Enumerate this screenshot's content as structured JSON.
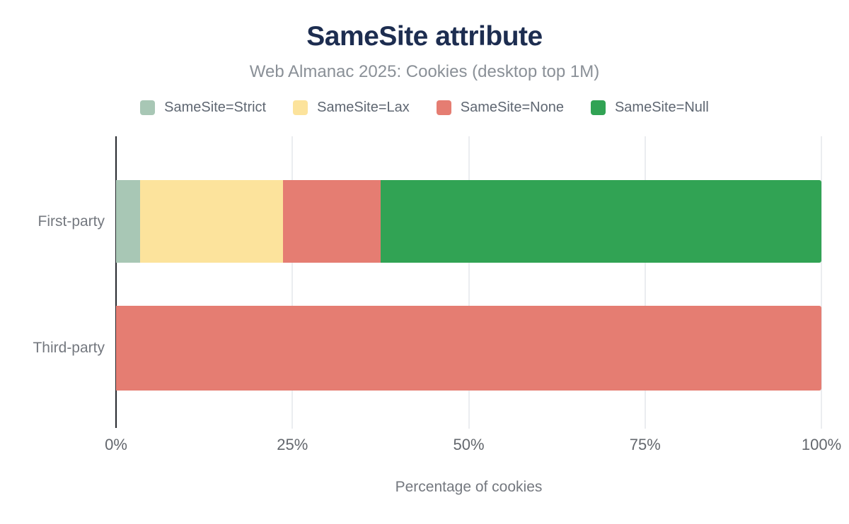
{
  "colors": {
    "background": "#ffffff",
    "title": "#1d2d50",
    "subtitle": "#8a9097",
    "legend_label": "#5f6772",
    "category_label": "#74787f",
    "tick_label": "#63676d",
    "axis_title": "#74787f",
    "axis_line": "#26292e",
    "gridline": "#ebedf0"
  },
  "chart_data": {
    "type": "bar",
    "orientation": "horizontal",
    "stacked": true,
    "title": "SameSite attribute",
    "subtitle": "Web Almanac 2025: Cookies (desktop top 1M)",
    "categories": [
      "First-party",
      "Third-party"
    ],
    "series": [
      {
        "name": "SameSite=Strict",
        "color": "#a8c7b5",
        "values": [
          3.4,
          0
        ]
      },
      {
        "name": "SameSite=Lax",
        "color": "#fce39c",
        "values": [
          20.3,
          0
        ]
      },
      {
        "name": "SameSite=None",
        "color": "#e57d72",
        "values": [
          13.8,
          100
        ]
      },
      {
        "name": "SameSite=Null",
        "color": "#31a354",
        "values": [
          62.5,
          0
        ]
      }
    ],
    "xlabel": "Percentage of cookies",
    "xlim": [
      0,
      100
    ],
    "x_ticks": [
      {
        "value": 0,
        "label": "0%"
      },
      {
        "value": 25,
        "label": "25%"
      },
      {
        "value": 50,
        "label": "50%"
      },
      {
        "value": 75,
        "label": "75%"
      },
      {
        "value": 100,
        "label": "100%"
      }
    ],
    "legend_position": "top",
    "grid": "vertical"
  }
}
